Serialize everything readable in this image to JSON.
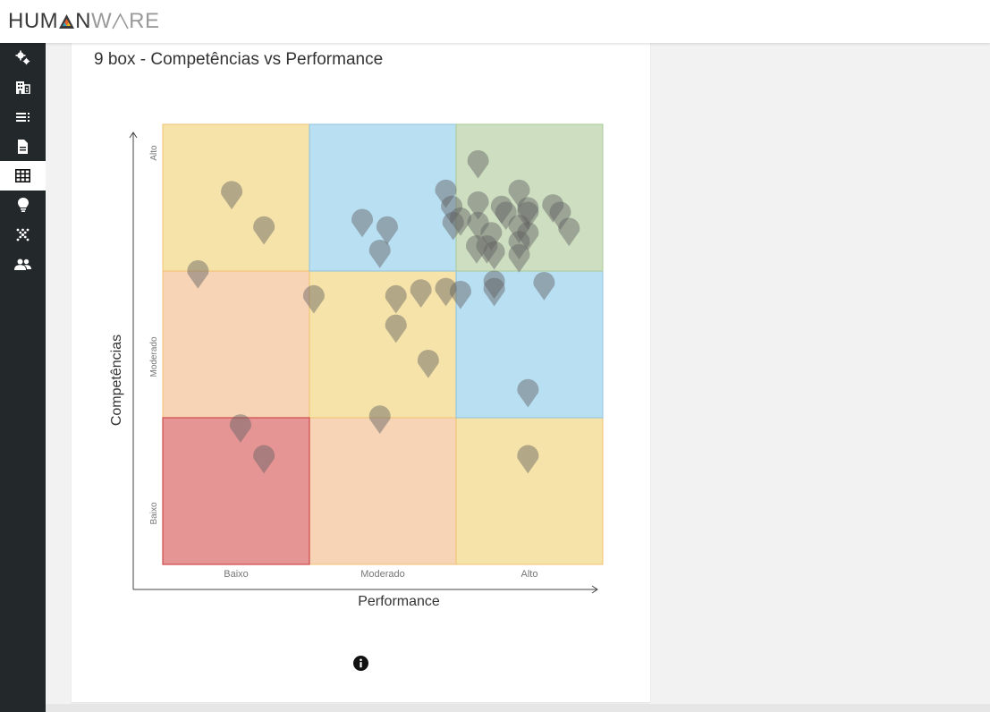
{
  "brand": {
    "name_part1": "HUM",
    "name_part2": "N",
    "name_part3": "W",
    "name_part4": "RE"
  },
  "sidebar": {
    "items": [
      {
        "icon": "cogs-icon",
        "active": false
      },
      {
        "icon": "building-icon",
        "active": false
      },
      {
        "icon": "list-icon",
        "active": false
      },
      {
        "icon": "document-icon",
        "active": false
      },
      {
        "icon": "grid-icon",
        "active": true
      },
      {
        "icon": "lightbulb-icon",
        "active": false
      },
      {
        "icon": "scatter-icon",
        "active": false
      },
      {
        "icon": "users-icon",
        "active": false
      }
    ]
  },
  "card": {
    "title": "9 box - Competências vs Performance",
    "info_icon": "info-icon"
  },
  "chart_data": {
    "type": "scatter",
    "title": "9 box - Competências vs Performance",
    "xlabel": "Performance",
    "ylabel": "Competências",
    "x_categories": [
      "Baixo",
      "Moderado",
      "Alto"
    ],
    "y_categories": [
      "Baixo",
      "Moderado",
      "Alto"
    ],
    "xlim": [
      0,
      3
    ],
    "ylim": [
      0,
      3
    ],
    "box_colors": {
      "Baixo-Baixo": "#e69595",
      "Moderado-Baixo": "#f7d4b6",
      "Alto-Baixo": "#f6e3aa",
      "Baixo-Moderado": "#f7d4b6",
      "Moderado-Moderado": "#f6e3aa",
      "Alto-Moderado": "#b9dff2",
      "Baixo-Alto": "#f6e3aa",
      "Moderado-Alto": "#b9dff2",
      "Alto-Alto": "#cedfc1"
    },
    "box_border_colors": {
      "Baixo-Baixo": "#d04b4b",
      "default": "#f0c070",
      "Alto-Alto": "#a9c995",
      "blue": "#8fc3de"
    },
    "marker_color": "#5f5f5f",
    "points": [
      {
        "x": 0.47,
        "y": 2.42
      },
      {
        "x": 0.69,
        "y": 2.18
      },
      {
        "x": 0.24,
        "y": 1.88
      },
      {
        "x": 1.03,
        "y": 1.71
      },
      {
        "x": 1.36,
        "y": 2.23
      },
      {
        "x": 1.53,
        "y": 2.18
      },
      {
        "x": 1.48,
        "y": 2.02
      },
      {
        "x": 1.59,
        "y": 1.71
      },
      {
        "x": 1.76,
        "y": 1.75
      },
      {
        "x": 1.93,
        "y": 2.43
      },
      {
        "x": 1.97,
        "y": 2.32
      },
      {
        "x": 1.98,
        "y": 2.21
      },
      {
        "x": 2.03,
        "y": 2.24
      },
      {
        "x": 2.15,
        "y": 2.63
      },
      {
        "x": 2.15,
        "y": 2.35
      },
      {
        "x": 2.15,
        "y": 2.21
      },
      {
        "x": 2.24,
        "y": 2.14
      },
      {
        "x": 2.14,
        "y": 2.05
      },
      {
        "x": 2.21,
        "y": 2.05
      },
      {
        "x": 2.31,
        "y": 2.32
      },
      {
        "x": 2.34,
        "y": 2.28
      },
      {
        "x": 2.43,
        "y": 2.43
      },
      {
        "x": 2.43,
        "y": 2.19
      },
      {
        "x": 2.43,
        "y": 2.08
      },
      {
        "x": 2.49,
        "y": 2.31
      },
      {
        "x": 2.49,
        "y": 2.14
      },
      {
        "x": 2.49,
        "y": 2.28
      },
      {
        "x": 2.66,
        "y": 2.33
      },
      {
        "x": 2.71,
        "y": 2.28
      },
      {
        "x": 2.77,
        "y": 2.17
      },
      {
        "x": 2.26,
        "y": 2.01
      },
      {
        "x": 2.43,
        "y": 1.99
      },
      {
        "x": 1.93,
        "y": 1.76
      },
      {
        "x": 2.03,
        "y": 1.74
      },
      {
        "x": 2.26,
        "y": 1.81
      },
      {
        "x": 2.26,
        "y": 1.76
      },
      {
        "x": 2.6,
        "y": 1.8
      },
      {
        "x": 2.49,
        "y": 1.07
      },
      {
        "x": 1.59,
        "y": 1.51
      },
      {
        "x": 1.81,
        "y": 1.27
      },
      {
        "x": 0.53,
        "y": 0.83
      },
      {
        "x": 0.69,
        "y": 0.62
      },
      {
        "x": 1.48,
        "y": 0.89
      },
      {
        "x": 2.49,
        "y": 0.62
      }
    ]
  }
}
